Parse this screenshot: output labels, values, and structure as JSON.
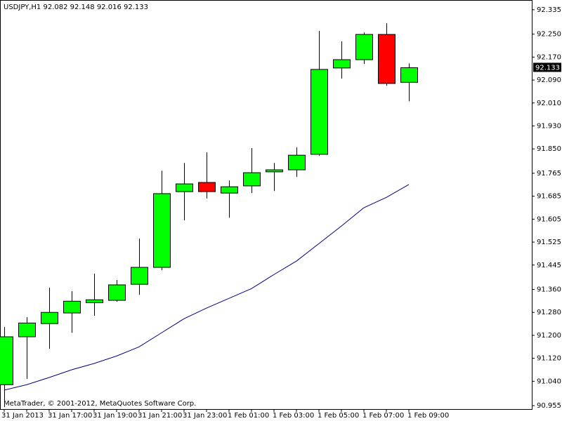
{
  "chart_data": {
    "type": "candlestick",
    "title": "USDJPY,H1  92.082 92.148 92.016 92.133",
    "annotation": "MetaTrader, © 2001-2012, MetaQuotes Software Corp.",
    "categories": [
      "31 Jan 2013",
      null,
      "31 Jan 17:00",
      null,
      "31 Jan 19:00",
      null,
      "31 Jan 21:00",
      null,
      "31 Jan 23:00",
      null,
      "1 Feb 01:00",
      null,
      "1 Feb 03:00",
      null,
      "1 Feb 05:00",
      null,
      "1 Feb 07:00",
      null,
      "1 Feb 09:00"
    ],
    "series": [
      {
        "type": "candlestick",
        "up_color": "#00ff00",
        "down_color": "#ff0000",
        "open": [
          91.028,
          91.195,
          91.241,
          91.278,
          91.314,
          91.322,
          91.378,
          91.437,
          91.701,
          91.733,
          91.696,
          91.721,
          91.77,
          91.777,
          91.831,
          92.132,
          92.161,
          92.249,
          92.082
        ],
        "high": [
          91.229,
          91.263,
          91.366,
          91.354,
          91.415,
          91.393,
          91.537,
          91.774,
          91.801,
          91.838,
          91.74,
          91.853,
          91.801,
          91.855,
          92.261,
          92.225,
          92.256,
          92.288,
          92.148
        ],
        "low": [
          90.95,
          91.048,
          91.153,
          91.209,
          91.268,
          91.317,
          91.341,
          91.427,
          91.601,
          91.677,
          91.61,
          91.696,
          91.703,
          91.752,
          91.826,
          92.095,
          92.146,
          92.07,
          92.016
        ],
        "close": [
          91.195,
          91.243,
          91.28,
          91.319,
          91.324,
          91.376,
          91.437,
          91.694,
          91.728,
          91.701,
          91.718,
          91.767,
          91.777,
          91.828,
          92.127,
          92.161,
          92.249,
          92.078,
          92.133
        ]
      },
      {
        "type": "line",
        "color": "#000080",
        "values": [
          91.009,
          91.028,
          91.053,
          91.08,
          91.102,
          91.128,
          91.16,
          91.209,
          91.258,
          91.295,
          91.329,
          91.363,
          91.412,
          91.459,
          91.52,
          91.581,
          91.645,
          91.681,
          91.726
        ]
      }
    ],
    "ylim": [
      90.943,
      92.369
    ],
    "yticks": [
      92.335,
      {
        "value": 92.25,
        "label": "92.250"
      },
      {
        "value": 92.17,
        "label": "92.170"
      },
      {
        "value": 92.09,
        "label": "92.090"
      },
      {
        "value": 92.01,
        "label": "92.010"
      },
      {
        "value": 91.93,
        "label": "91.930"
      },
      {
        "value": 91.85,
        "label": "91.850"
      },
      91.765,
      91.685,
      91.605,
      91.525,
      91.445,
      {
        "value": 91.36,
        "label": "91.360"
      },
      {
        "value": 91.28,
        "label": "91.280"
      },
      {
        "value": 91.2,
        "label": "91.200"
      },
      {
        "value": 91.12,
        "label": "91.120"
      },
      {
        "value": 91.04,
        "label": "91.040"
      },
      90.955
    ]
  }
}
